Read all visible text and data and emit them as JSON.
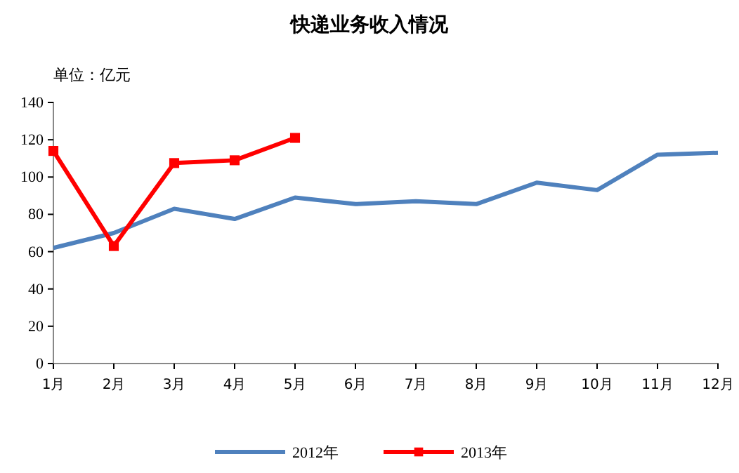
{
  "chart_data": {
    "type": "line",
    "title": "快递业务收入情况",
    "ylabel": "单位：亿元",
    "categories": [
      "1月",
      "2月",
      "3月",
      "4月",
      "5月",
      "6月",
      "7月",
      "8月",
      "9月",
      "10月",
      "11月",
      "12月"
    ],
    "series": [
      {
        "name": "2012年",
        "color": "#4f81bd",
        "marker": "none",
        "values": [
          62,
          70,
          83,
          77.5,
          89,
          85.5,
          87,
          85.5,
          97,
          93,
          112,
          113
        ]
      },
      {
        "name": "2013年",
        "color": "#ff0000",
        "marker": "square",
        "values": [
          114,
          63,
          107.5,
          109,
          121,
          null,
          null,
          null,
          null,
          null,
          null,
          null
        ]
      }
    ],
    "ylim": [
      0,
      140
    ],
    "yticks": [
      0,
      20,
      40,
      60,
      80,
      100,
      120,
      140
    ],
    "grid": false,
    "legend": "bottom"
  }
}
